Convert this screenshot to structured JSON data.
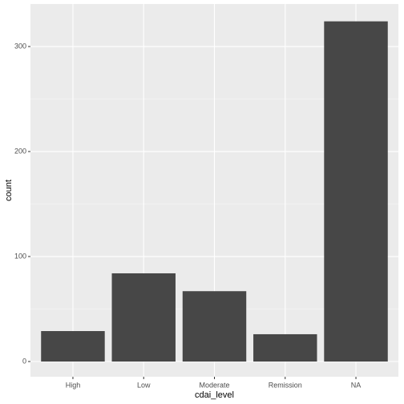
{
  "chart_data": {
    "type": "bar",
    "categories": [
      "High",
      "Low",
      "Moderate",
      "Remission",
      "NA"
    ],
    "values": [
      29,
      84,
      67,
      26,
      324
    ],
    "color": "#474747",
    "x_label": "cdai_level",
    "y_label": "count",
    "ylim": [
      -14.5,
      340.5
    ],
    "yticks": [
      0,
      100,
      200,
      300
    ],
    "grid": true
  }
}
